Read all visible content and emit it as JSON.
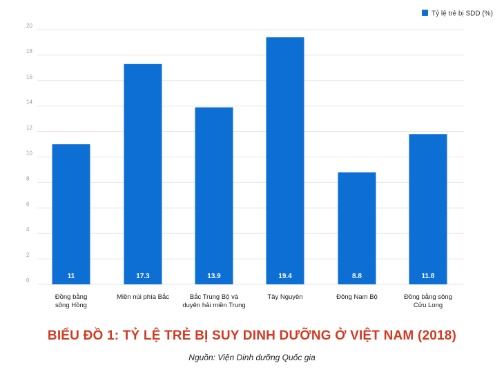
{
  "chart_data": {
    "type": "bar",
    "title": "BIỂU ĐỒ 1: TỶ LỆ TRẺ BỊ SUY DINH DƯỠNG Ở VIỆT NAM (2018)",
    "source": "Nguồn: Viện Dinh dưỡng Quốc gia",
    "categories": [
      [
        "Đồng bằng",
        "sông Hồng"
      ],
      [
        "Miền núi phía Bắc"
      ],
      [
        "Bắc Trung Bộ và",
        "duyên hải miền Trung"
      ],
      [
        "Tây Nguyên"
      ],
      [
        "Đông Nam Bộ"
      ],
      [
        "Đồng bằng sông",
        "Cửu Long"
      ]
    ],
    "series": [
      {
        "name": "Tỷ lệ trẻ bị SDD (%)",
        "values": [
          11,
          17.3,
          13.9,
          19.4,
          8.8,
          11.8
        ]
      }
    ],
    "data_labels": [
      "11",
      "17.3",
      "13.9",
      "19.4",
      "8.8",
      "11.8"
    ],
    "yticks": [
      0,
      2,
      4,
      6,
      8,
      10,
      12,
      14,
      16,
      18,
      20
    ],
    "ylim": [
      0,
      20
    ],
    "grid": true,
    "legend_position": "top-right",
    "bar_color": "#0d6fd3",
    "grid_color": "#e6e6e6"
  }
}
